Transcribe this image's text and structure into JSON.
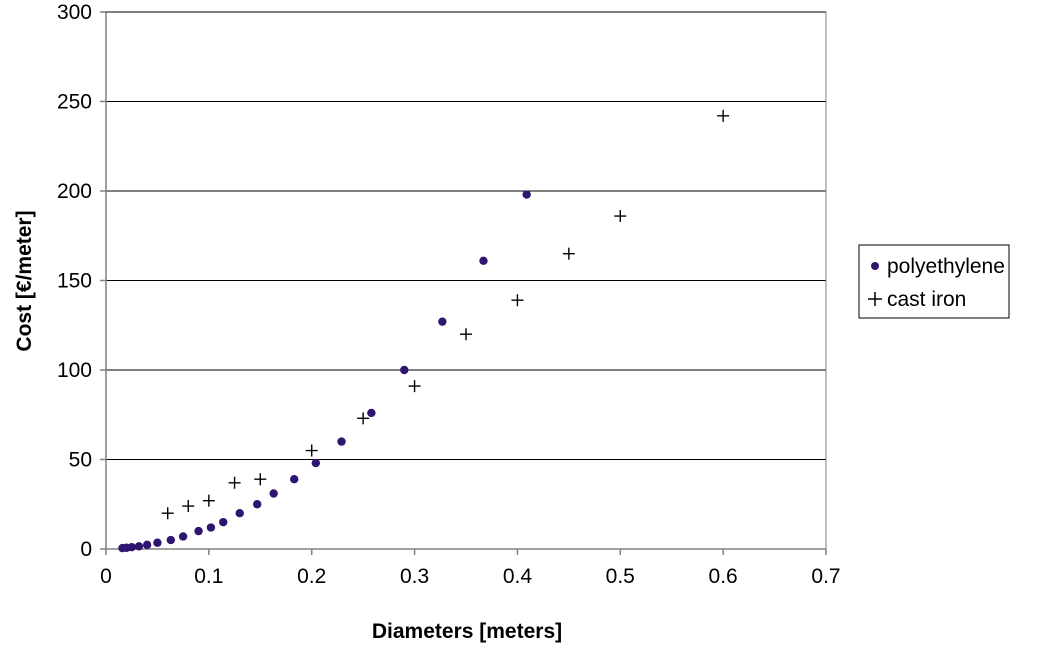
{
  "chart_data": {
    "type": "scatter",
    "title": "",
    "xlabel": "Diameters [meters]",
    "ylabel": "Cost [€/meter]",
    "xlim": [
      0,
      0.7
    ],
    "ylim": [
      0,
      300
    ],
    "x_ticks": [
      0,
      0.1,
      0.2,
      0.3,
      0.4,
      0.5,
      0.6,
      0.7
    ],
    "x_tick_labels": [
      "0",
      "0.1",
      "0.2",
      "0.3",
      "0.4",
      "0.5",
      "0.6",
      "0.7"
    ],
    "y_ticks": [
      0,
      50,
      100,
      150,
      200,
      250,
      300
    ],
    "y_tick_labels": [
      "0",
      "50",
      "100",
      "150",
      "200",
      "250",
      "300"
    ],
    "grid": "horizontal",
    "legend_position": "right",
    "series": [
      {
        "name": "polyethylene",
        "marker": "circle",
        "color": "#2e1570",
        "points": [
          {
            "x": 0.016,
            "y": 0.5
          },
          {
            "x": 0.02,
            "y": 0.7
          },
          {
            "x": 0.025,
            "y": 1.0
          },
          {
            "x": 0.032,
            "y": 1.5
          },
          {
            "x": 0.04,
            "y": 2.3
          },
          {
            "x": 0.05,
            "y": 3.5
          },
          {
            "x": 0.063,
            "y": 5.0
          },
          {
            "x": 0.075,
            "y": 7.0
          },
          {
            "x": 0.09,
            "y": 10.0
          },
          {
            "x": 0.102,
            "y": 12.0
          },
          {
            "x": 0.114,
            "y": 15.0
          },
          {
            "x": 0.13,
            "y": 20.0
          },
          {
            "x": 0.147,
            "y": 25.0
          },
          {
            "x": 0.163,
            "y": 31.0
          },
          {
            "x": 0.183,
            "y": 39.0
          },
          {
            "x": 0.204,
            "y": 48.0
          },
          {
            "x": 0.229,
            "y": 60.0
          },
          {
            "x": 0.258,
            "y": 76.0
          },
          {
            "x": 0.29,
            "y": 100.0
          },
          {
            "x": 0.327,
            "y": 127.0
          },
          {
            "x": 0.367,
            "y": 161.0
          },
          {
            "x": 0.409,
            "y": 198.0
          }
        ]
      },
      {
        "name": "cast iron",
        "marker": "plus",
        "color": "#000000",
        "points": [
          {
            "x": 0.06,
            "y": 20.0
          },
          {
            "x": 0.08,
            "y": 24.0
          },
          {
            "x": 0.1,
            "y": 27.0
          },
          {
            "x": 0.125,
            "y": 37.0
          },
          {
            "x": 0.15,
            "y": 39.0
          },
          {
            "x": 0.2,
            "y": 55.0
          },
          {
            "x": 0.25,
            "y": 73.0
          },
          {
            "x": 0.3,
            "y": 91.0
          },
          {
            "x": 0.35,
            "y": 120.0
          },
          {
            "x": 0.4,
            "y": 139.0
          },
          {
            "x": 0.45,
            "y": 165.0
          },
          {
            "x": 0.5,
            "y": 186.0
          },
          {
            "x": 0.6,
            "y": 242.0
          }
        ]
      }
    ]
  }
}
